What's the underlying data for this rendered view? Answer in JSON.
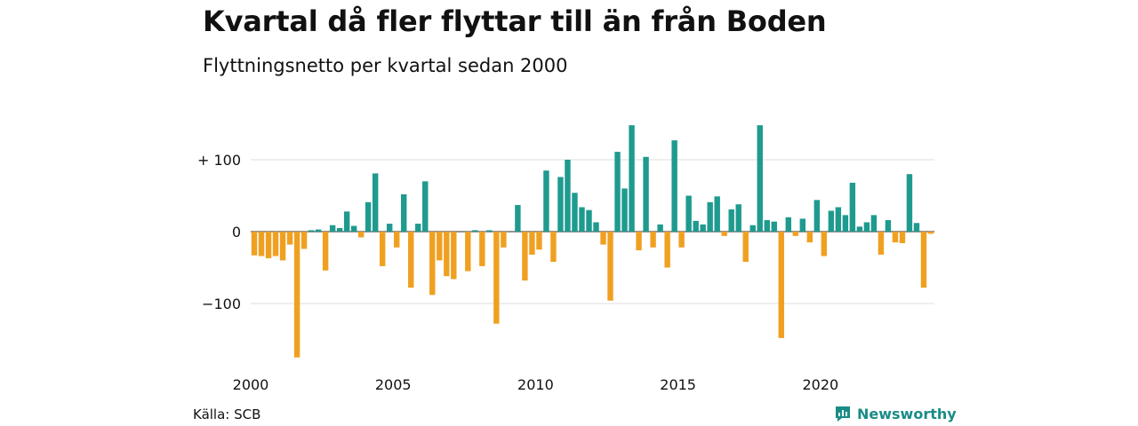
{
  "title": "Kvartal då fler flyttar till än från Boden",
  "subtitle": "Flyttningsnetto per kvartal sedan 2000",
  "source": "Källa: SCB",
  "brand": "Newsworthy",
  "colors": {
    "positive": "#1f9a8f",
    "negative": "#f0a021",
    "grid": "#dddddd",
    "brand": "#1a8c86"
  },
  "chart_data": {
    "type": "bar",
    "x_start_year": 2000,
    "quarters_per_year": 4,
    "ylim": [
      -175,
      150
    ],
    "yticks": [
      {
        "value": 100,
        "label": "+ 100"
      },
      {
        "value": 0,
        "label": "0"
      },
      {
        "value": -100,
        "label": "−100"
      }
    ],
    "xticks": [
      "2000",
      "2005",
      "2010",
      "2015",
      "2020"
    ],
    "grid": true,
    "values": [
      -33,
      -34,
      -37,
      -34,
      -40,
      -18,
      -175,
      -24,
      2,
      3,
      -54,
      9,
      5,
      28,
      8,
      -8,
      41,
      81,
      -48,
      11,
      -22,
      52,
      -78,
      11,
      70,
      -88,
      -40,
      -62,
      -66,
      0,
      -55,
      2,
      -48,
      2,
      -128,
      -22,
      0,
      37,
      -68,
      -32,
      -25,
      85,
      -42,
      76,
      100,
      54,
      34,
      30,
      13,
      -18,
      -96,
      111,
      60,
      148,
      -26,
      104,
      -22,
      10,
      -50,
      127,
      -22,
      50,
      15,
      10,
      41,
      49,
      -6,
      31,
      38,
      -42,
      9,
      148,
      16,
      14,
      -148,
      20,
      -6,
      18,
      -15,
      44,
      -34,
      29,
      34,
      23,
      68,
      7,
      13,
      23,
      -32,
      16,
      -15,
      -16,
      80,
      12,
      -78,
      -3
    ]
  }
}
